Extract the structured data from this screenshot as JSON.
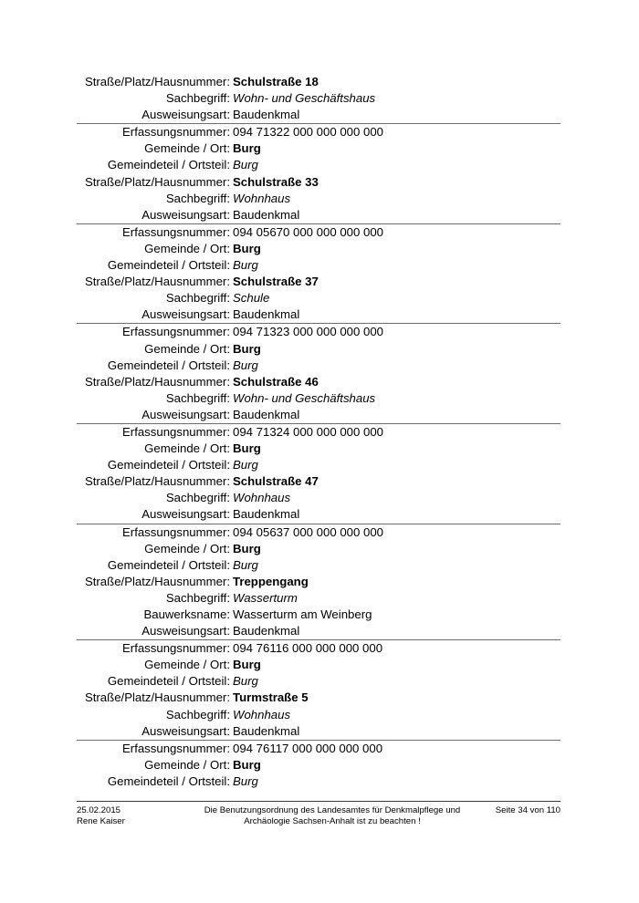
{
  "document": {
    "records": [
      {
        "rows": [
          {
            "label": "Straße/Platz/Hausnummer:",
            "value": "Schulstraße 18",
            "style": "bold"
          },
          {
            "label": "Sachbegriff:",
            "value": "Wohn- und Geschäftshaus",
            "style": "italic"
          },
          {
            "label": "Ausweisungsart:",
            "value": "Baudenkmal",
            "style": "normal"
          }
        ]
      },
      {
        "rows": [
          {
            "label": "Erfassungsnummer:",
            "value": "094 71322 000 000 000 000",
            "style": "normal"
          },
          {
            "label": "Gemeinde / Ort:",
            "value": "Burg",
            "style": "bold"
          },
          {
            "label": "Gemeindeteil / Ortsteil:",
            "value": "Burg",
            "style": "italic"
          },
          {
            "label": "Straße/Platz/Hausnummer:",
            "value": "Schulstraße 33",
            "style": "bold"
          },
          {
            "label": "Sachbegriff:",
            "value": "Wohnhaus",
            "style": "italic"
          },
          {
            "label": "Ausweisungsart:",
            "value": "Baudenkmal",
            "style": "normal"
          }
        ]
      },
      {
        "rows": [
          {
            "label": "Erfassungsnummer:",
            "value": "094 05670 000 000 000 000",
            "style": "normal"
          },
          {
            "label": "Gemeinde / Ort:",
            "value": "Burg",
            "style": "bold"
          },
          {
            "label": "Gemeindeteil / Ortsteil:",
            "value": "Burg",
            "style": "italic"
          },
          {
            "label": "Straße/Platz/Hausnummer:",
            "value": "Schulstraße 37",
            "style": "bold"
          },
          {
            "label": "Sachbegriff:",
            "value": "Schule",
            "style": "italic"
          },
          {
            "label": "Ausweisungsart:",
            "value": "Baudenkmal",
            "style": "normal"
          }
        ]
      },
      {
        "rows": [
          {
            "label": "Erfassungsnummer:",
            "value": "094 71323 000 000 000 000",
            "style": "normal"
          },
          {
            "label": "Gemeinde / Ort:",
            "value": "Burg",
            "style": "bold"
          },
          {
            "label": "Gemeindeteil / Ortsteil:",
            "value": "Burg",
            "style": "italic"
          },
          {
            "label": "Straße/Platz/Hausnummer:",
            "value": "Schulstraße 46",
            "style": "bold"
          },
          {
            "label": "Sachbegriff:",
            "value": "Wohn- und Geschäftshaus",
            "style": "italic"
          },
          {
            "label": "Ausweisungsart:",
            "value": "Baudenkmal",
            "style": "normal"
          }
        ]
      },
      {
        "rows": [
          {
            "label": "Erfassungsnummer:",
            "value": "094 71324 000 000 000 000",
            "style": "normal"
          },
          {
            "label": "Gemeinde / Ort:",
            "value": "Burg",
            "style": "bold"
          },
          {
            "label": "Gemeindeteil / Ortsteil:",
            "value": "Burg",
            "style": "italic"
          },
          {
            "label": "Straße/Platz/Hausnummer:",
            "value": "Schulstraße 47",
            "style": "bold"
          },
          {
            "label": "Sachbegriff:",
            "value": "Wohnhaus",
            "style": "italic"
          },
          {
            "label": "Ausweisungsart:",
            "value": "Baudenkmal",
            "style": "normal"
          }
        ]
      },
      {
        "rows": [
          {
            "label": "Erfassungsnummer:",
            "value": "094 05637 000 000 000 000",
            "style": "normal"
          },
          {
            "label": "Gemeinde / Ort:",
            "value": "Burg",
            "style": "bold"
          },
          {
            "label": "Gemeindeteil / Ortsteil:",
            "value": "Burg",
            "style": "italic"
          },
          {
            "label": "Straße/Platz/Hausnummer:",
            "value": "Treppengang",
            "style": "bold"
          },
          {
            "label": "Sachbegriff:",
            "value": "Wasserturm",
            "style": "italic"
          },
          {
            "label": "Bauwerksname:",
            "value": "Wasserturm am Weinberg",
            "style": "normal"
          },
          {
            "label": "Ausweisungsart:",
            "value": "Baudenkmal",
            "style": "normal"
          }
        ]
      },
      {
        "rows": [
          {
            "label": "Erfassungsnummer:",
            "value": "094 76116 000 000 000 000",
            "style": "normal"
          },
          {
            "label": "Gemeinde / Ort:",
            "value": "Burg",
            "style": "bold"
          },
          {
            "label": "Gemeindeteil / Ortsteil:",
            "value": "Burg",
            "style": "italic"
          },
          {
            "label": "Straße/Platz/Hausnummer:",
            "value": "Turmstraße 5",
            "style": "bold"
          },
          {
            "label": "Sachbegriff:",
            "value": "Wohnhaus",
            "style": "italic"
          },
          {
            "label": "Ausweisungsart:",
            "value": "Baudenkmal",
            "style": "normal"
          }
        ]
      },
      {
        "rows": [
          {
            "label": "Erfassungsnummer:",
            "value": "094 76117 000 000 000 000",
            "style": "normal"
          },
          {
            "label": "Gemeinde / Ort:",
            "value": "Burg",
            "style": "bold"
          },
          {
            "label": "Gemeindeteil / Ortsteil:",
            "value": "Burg",
            "style": "italic"
          }
        ]
      }
    ],
    "footer": {
      "date": "25.02.2015",
      "author": "Rene Kaiser",
      "notice_line1": "Die Benutzungsordnung des Landesamtes für Denkmalpflege und",
      "notice_line2": "Archäologie Sachsen-Anhalt ist zu beachten !",
      "page_indicator": "Seite 34 von 110"
    },
    "colors": {
      "text": "#000000",
      "separator_line": "#6e6e6e",
      "footer_line": "#3a3a3a",
      "background": "#ffffff"
    }
  }
}
